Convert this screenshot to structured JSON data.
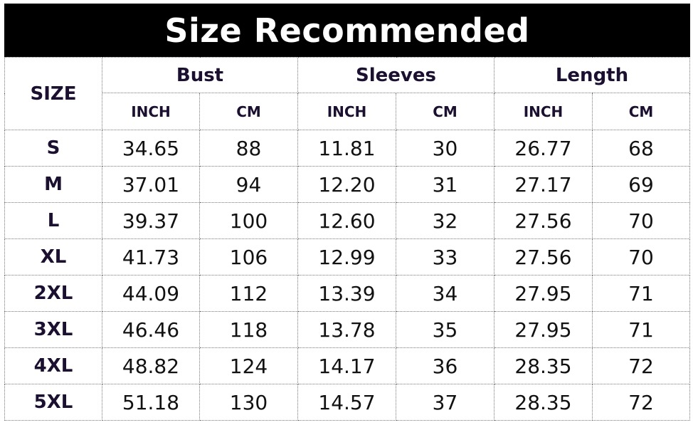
{
  "title": "Size Recommended",
  "headers": {
    "size": "SIZE",
    "groups": [
      "Bust",
      "Sleeves",
      "Length"
    ],
    "units": [
      "INCH",
      "CM",
      "INCH",
      "CM",
      "INCH",
      "CM"
    ]
  },
  "rows": [
    [
      "S",
      "34.65",
      "88",
      "11.81",
      "30",
      "26.77",
      "68"
    ],
    [
      "M",
      "37.01",
      "94",
      "12.20",
      "31",
      "27.17",
      "69"
    ],
    [
      "L",
      "39.37",
      "100",
      "12.60",
      "32",
      "27.56",
      "70"
    ],
    [
      "XL",
      "41.73",
      "106",
      "12.99",
      "33",
      "27.56",
      "70"
    ],
    [
      "2XL",
      "44.09",
      "112",
      "13.39",
      "34",
      "27.95",
      "71"
    ],
    [
      "3XL",
      "46.46",
      "118",
      "13.78",
      "35",
      "27.95",
      "71"
    ],
    [
      "4XL",
      "48.82",
      "124",
      "14.17",
      "36",
      "28.35",
      "72"
    ],
    [
      "5XL",
      "51.18",
      "130",
      "14.57",
      "37",
      "28.35",
      "72"
    ]
  ]
}
